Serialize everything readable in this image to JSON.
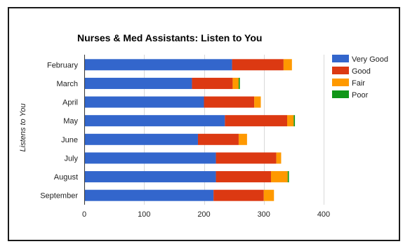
{
  "chart_data": {
    "type": "bar",
    "orientation": "horizontal",
    "stacked": true,
    "title": "Nurses & Med Assistants: Listen to You",
    "ylabel": "Listens to You",
    "xlabel": "",
    "categories": [
      "February",
      "March",
      "April",
      "May",
      "June",
      "July",
      "August",
      "September"
    ],
    "xlim": [
      0,
      400
    ],
    "x_ticks": [
      0,
      100,
      200,
      300,
      400
    ],
    "grid": true,
    "legend_position": "right",
    "series": [
      {
        "name": "Very Good",
        "color": "#3366cc",
        "values": [
          247,
          180,
          200,
          235,
          190,
          220,
          220,
          216
        ]
      },
      {
        "name": "Good",
        "color": "#dc3912",
        "values": [
          86,
          68,
          84,
          104,
          68,
          101,
          92,
          84
        ]
      },
      {
        "name": "Fair",
        "color": "#ff9900",
        "values": [
          14,
          10,
          11,
          11,
          14,
          8,
          28,
          17
        ]
      },
      {
        "name": "Poor",
        "color": "#109618",
        "values": [
          0,
          2,
          0,
          2,
          0,
          0,
          2,
          0
        ]
      }
    ]
  }
}
